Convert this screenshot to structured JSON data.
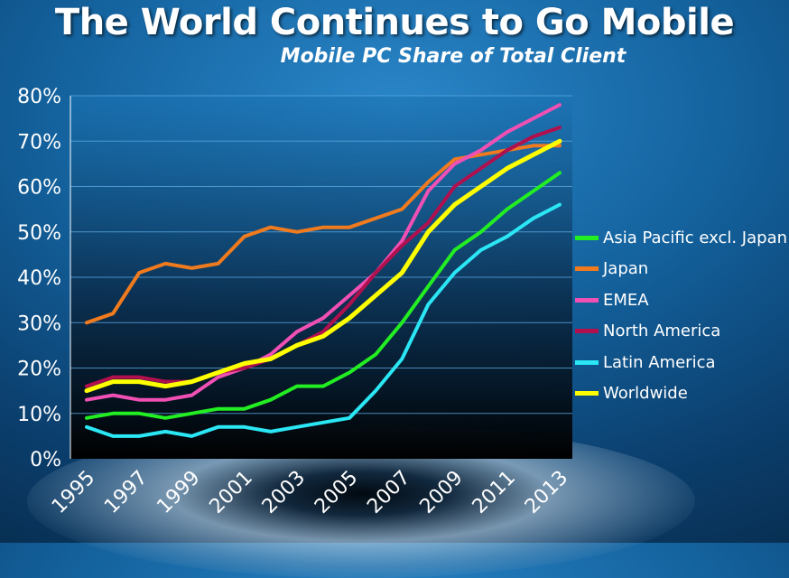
{
  "title": "The World Continues to Go Mobile",
  "subtitle": "Mobile PC Share of Total Client",
  "chart_data": {
    "type": "line",
    "x": [
      1995,
      1996,
      1997,
      1998,
      1999,
      2000,
      2001,
      2002,
      2003,
      2004,
      2005,
      2006,
      2007,
      2008,
      2009,
      2010,
      2011,
      2012,
      2013
    ],
    "x_tick_labels": [
      "1995",
      "1997",
      "1999",
      "2001",
      "2003",
      "2005",
      "2007",
      "2009",
      "2011",
      "2013"
    ],
    "y_tick_labels": [
      "0%",
      "10%",
      "20%",
      "30%",
      "40%",
      "50%",
      "60%",
      "70%",
      "80%"
    ],
    "ylim": [
      0,
      80
    ],
    "y_unit": "%",
    "grid": true,
    "legend_position": "right",
    "series": [
      {
        "name": "Asia Pacific excl. Japan",
        "color": "#22ee22",
        "values": [
          9,
          10,
          10,
          9,
          10,
          11,
          11,
          13,
          16,
          16,
          19,
          23,
          30,
          38,
          46,
          50,
          55,
          59,
          63
        ]
      },
      {
        "name": "Japan",
        "color": "#f07a1e",
        "values": [
          30,
          32,
          41,
          43,
          42,
          43,
          49,
          51,
          50,
          51,
          51,
          53,
          55,
          61,
          66,
          67,
          68,
          69,
          69
        ]
      },
      {
        "name": "EMEA",
        "color": "#f050b4",
        "values": [
          13,
          14,
          13,
          13,
          14,
          18,
          20,
          23,
          28,
          31,
          36,
          41,
          48,
          59,
          65,
          68,
          72,
          75,
          78
        ]
      },
      {
        "name": "North America",
        "color": "#b0104e",
        "values": [
          16,
          18,
          18,
          17,
          17,
          19,
          20,
          22,
          25,
          28,
          34,
          41,
          47,
          52,
          60,
          64,
          68,
          71,
          73
        ]
      },
      {
        "name": "Latin America",
        "color": "#2be6f4",
        "values": [
          7,
          5,
          5,
          6,
          5,
          7,
          7,
          6,
          7,
          8,
          9,
          15,
          22,
          34,
          41,
          46,
          49,
          53,
          56
        ]
      },
      {
        "name": "Worldwide",
        "color": "#ffff00",
        "values": [
          15,
          17,
          17,
          16,
          17,
          19,
          21,
          22,
          25,
          27,
          31,
          36,
          41,
          50,
          56,
          60,
          64,
          67,
          70
        ]
      }
    ]
  }
}
